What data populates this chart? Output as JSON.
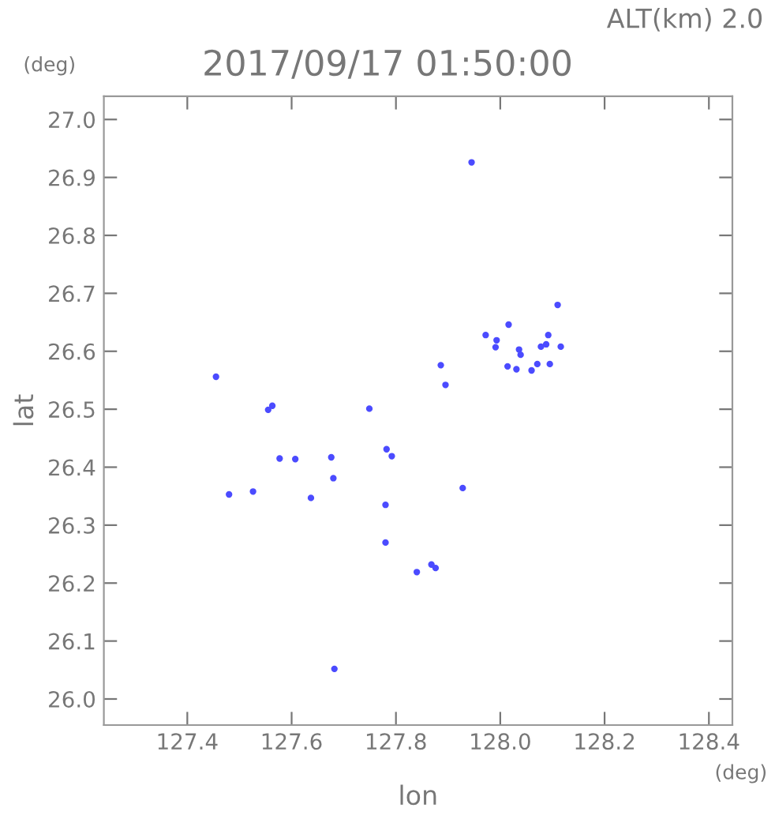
{
  "chart_data": {
    "type": "scatter",
    "title": "2017/09/17 01:50:00",
    "subtitle": "ALT(km) 2.0",
    "xlabel": "lon",
    "ylabel": "lat",
    "annotations": [
      "(deg)",
      "(deg)"
    ],
    "x": [
      127.945,
      128.016,
      127.682,
      127.455,
      127.563,
      127.555,
      127.577,
      127.607,
      127.676,
      127.68,
      127.48,
      127.526,
      127.637,
      127.749,
      127.782,
      127.792,
      127.78,
      127.78,
      127.84,
      127.868,
      127.876,
      127.928,
      127.886,
      127.895,
      128.11,
      127.972,
      127.993,
      127.991,
      128.036,
      128.039,
      128.092,
      128.078,
      128.088,
      128.116,
      128.014,
      128.031,
      128.06,
      128.071,
      128.095
    ],
    "series": [
      {
        "color": "#4b4bff",
        "values": [
          26.926,
          26.646,
          26.052,
          26.556,
          26.506,
          26.499,
          26.415,
          26.414,
          26.417,
          26.381,
          26.353,
          26.358,
          26.347,
          26.501,
          26.431,
          26.419,
          26.335,
          26.27,
          26.219,
          26.232,
          26.226,
          26.364,
          26.576,
          26.542,
          26.68,
          26.628,
          26.619,
          26.607,
          26.603,
          26.594,
          26.628,
          26.608,
          26.612,
          26.608,
          26.574,
          26.569,
          26.567,
          26.578,
          26.578
        ]
      }
    ],
    "xlim": [
      127.24,
      128.445
    ],
    "ylim": [
      25.955,
      27.04
    ],
    "xticks": [
      127.4,
      127.6,
      127.8,
      {
        "value": 128,
        "label": "128.0"
      },
      128.2,
      128.4
    ],
    "yticks": [
      {
        "value": 26,
        "label": "26.0"
      },
      26.1,
      26.2,
      26.3,
      26.4,
      26.5,
      26.6,
      26.7,
      26.8,
      26.9,
      {
        "value": 27,
        "label": "27.0"
      }
    ],
    "marker": "circle",
    "grid": false,
    "legend": false
  }
}
